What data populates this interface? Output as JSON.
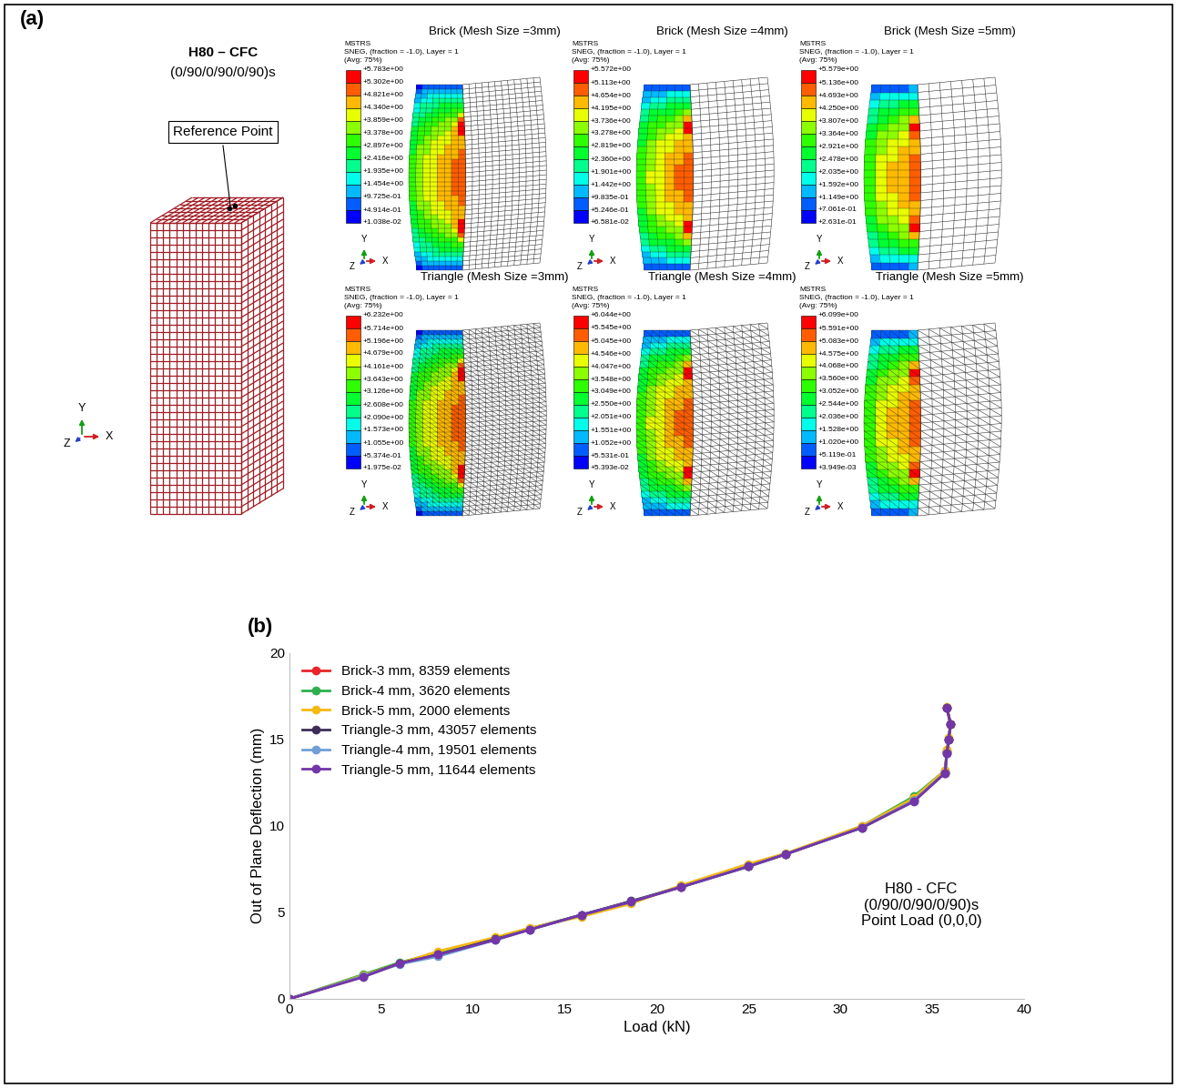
{
  "panel_a": {
    "panel_label": "(a)",
    "model": [
      "H80 – CFC",
      "(0/90/0/90/0/90)s"
    ],
    "reference_point": "Reference Point",
    "axis_letters": {
      "x": "X",
      "y": "Y",
      "z": "Z"
    },
    "header": [
      "MSTRS",
      "SNEG, (fraction = -1.0), Layer = 1",
      "(Avg: 75%)"
    ],
    "contours": [
      {
        "title": "Brick (Mesh Size =3mm)",
        "type": "brick",
        "colorbar_ticks": [
          {
            "value": 5.783,
            "label": "+5.783e+00"
          },
          {
            "value": 5.302,
            "label": "+5.302e+00"
          },
          {
            "value": 4.821,
            "label": "+4.821e+00"
          },
          {
            "value": 4.34,
            "label": "+4.340e+00"
          },
          {
            "value": 3.859,
            "label": "+3.859e+00"
          },
          {
            "value": 3.378,
            "label": "+3.378e+00"
          },
          {
            "value": 2.897,
            "label": "+2.897e+00"
          },
          {
            "value": 2.416,
            "label": "+2.416e+00"
          },
          {
            "value": 1.935,
            "label": "+1.935e+00"
          },
          {
            "value": 1.454,
            "label": "+1.454e+00"
          },
          {
            "value": 0.9725,
            "label": "+9.725e-01"
          },
          {
            "value": 0.4914,
            "label": "+4.914e-01"
          },
          {
            "value": 0.01038,
            "label": "+1.038e-02"
          }
        ]
      },
      {
        "title": "Brick (Mesh Size =4mm)",
        "type": "brick",
        "colorbar_ticks": [
          {
            "value": 5.572,
            "label": "+5.572e+00"
          },
          {
            "value": 5.113,
            "label": "+5.113e+00"
          },
          {
            "value": 4.654,
            "label": "+4.654e+00"
          },
          {
            "value": 4.195,
            "label": "+4.195e+00"
          },
          {
            "value": 3.736,
            "label": "+3.736e+00"
          },
          {
            "value": 3.278,
            "label": "+3.278e+00"
          },
          {
            "value": 2.819,
            "label": "+2.819e+00"
          },
          {
            "value": 2.36,
            "label": "+2.360e+00"
          },
          {
            "value": 1.901,
            "label": "+1.901e+00"
          },
          {
            "value": 1.442,
            "label": "+1.442e+00"
          },
          {
            "value": 0.9835,
            "label": "+9.835e-01"
          },
          {
            "value": 0.5246,
            "label": "+5.246e-01"
          },
          {
            "value": 0.06581,
            "label": "+6.581e-02"
          }
        ]
      },
      {
        "title": "Brick (Mesh Size =5mm)",
        "type": "brick",
        "colorbar_ticks": [
          {
            "value": 5.579,
            "label": "+5.579e+00"
          },
          {
            "value": 5.136,
            "label": "+5.136e+00"
          },
          {
            "value": 4.693,
            "label": "+4.693e+00"
          },
          {
            "value": 4.25,
            "label": "+4.250e+00"
          },
          {
            "value": 3.807,
            "label": "+3.807e+00"
          },
          {
            "value": 3.364,
            "label": "+3.364e+00"
          },
          {
            "value": 2.921,
            "label": "+2.921e+00"
          },
          {
            "value": 2.478,
            "label": "+2.478e+00"
          },
          {
            "value": 2.035,
            "label": "+2.035e+00"
          },
          {
            "value": 1.592,
            "label": "+1.592e+00"
          },
          {
            "value": 1.149,
            "label": "+1.149e+00"
          },
          {
            "value": 0.7061,
            "label": "+7.061e-01"
          },
          {
            "value": 0.2631,
            "label": "+2.631e-01"
          }
        ]
      },
      {
        "title": "Triangle (Mesh Size =3mm)",
        "type": "triangle",
        "colorbar_ticks": [
          {
            "value": 6.232,
            "label": "+6.232e+00"
          },
          {
            "value": 5.714,
            "label": "+5.714e+00"
          },
          {
            "value": 5.196,
            "label": "+5.196e+00"
          },
          {
            "value": 4.679,
            "label": "+4.679e+00"
          },
          {
            "value": 4.161,
            "label": "+4.161e+00"
          },
          {
            "value": 3.643,
            "label": "+3.643e+00"
          },
          {
            "value": 3.126,
            "label": "+3.126e+00"
          },
          {
            "value": 2.608,
            "label": "+2.608e+00"
          },
          {
            "value": 2.09,
            "label": "+2.090e+00"
          },
          {
            "value": 1.573,
            "label": "+1.573e+00"
          },
          {
            "value": 1.055,
            "label": "+1.055e+00"
          },
          {
            "value": 0.5374,
            "label": "+5.374e-01"
          },
          {
            "value": 0.01975,
            "label": "+1.975e-02"
          }
        ]
      },
      {
        "title": "Triangle (Mesh Size =4mm)",
        "type": "triangle",
        "colorbar_ticks": [
          {
            "value": 6.044,
            "label": "+6.044e+00"
          },
          {
            "value": 5.545,
            "label": "+5.545e+00"
          },
          {
            "value": 5.045,
            "label": "+5.045e+00"
          },
          {
            "value": 4.546,
            "label": "+4.546e+00"
          },
          {
            "value": 4.047,
            "label": "+4.047e+00"
          },
          {
            "value": 3.548,
            "label": "+3.548e+00"
          },
          {
            "value": 3.049,
            "label": "+3.049e+00"
          },
          {
            "value": 2.55,
            "label": "+2.550e+00"
          },
          {
            "value": 2.051,
            "label": "+2.051e+00"
          },
          {
            "value": 1.551,
            "label": "+1.551e+00"
          },
          {
            "value": 1.052,
            "label": "+1.052e+00"
          },
          {
            "value": 0.5531,
            "label": "+5.531e-01"
          },
          {
            "value": 0.05393,
            "label": "+5.393e-02"
          }
        ]
      },
      {
        "title": "Triangle (Mesh Size =5mm)",
        "type": "triangle",
        "colorbar_ticks": [
          {
            "value": 6.099,
            "label": "+6.099e+00"
          },
          {
            "value": 5.591,
            "label": "+5.591e+00"
          },
          {
            "value": 5.083,
            "label": "+5.083e+00"
          },
          {
            "value": 4.575,
            "label": "+4.575e+00"
          },
          {
            "value": 4.068,
            "label": "+4.068e+00"
          },
          {
            "value": 3.56,
            "label": "+3.560e+00"
          },
          {
            "value": 3.052,
            "label": "+3.052e+00"
          },
          {
            "value": 2.544,
            "label": "+2.544e+00"
          },
          {
            "value": 2.036,
            "label": "+2.036e+00"
          },
          {
            "value": 1.528,
            "label": "+1.528e+00"
          },
          {
            "value": 1.02,
            "label": "+1.020e+00"
          },
          {
            "value": 0.5119,
            "label": "+5.119e-01"
          },
          {
            "value": 0.003949,
            "label": "+3.949e-03"
          }
        ]
      }
    ]
  },
  "chart_data": {
    "type": "line",
    "panel_label": "(b)",
    "x_label": "Load (kN)",
    "y_label": "Out of Plane Deflection (mm)",
    "xlim": [
      0,
      40
    ],
    "xticks": [
      0,
      5,
      10,
      15,
      20,
      25,
      30,
      35,
      40
    ],
    "ylim": [
      0,
      20
    ],
    "yticks": [
      0,
      5,
      10,
      15,
      20
    ],
    "grid": false,
    "legend": "upper left",
    "marker": "circle",
    "line_style": "solid",
    "annotation": [
      "H80 - CFC",
      "(0/90/0/90/0/90)s",
      "Point Load (0,0,0)"
    ],
    "series": [
      {
        "name": "Brick-3 mm, 8359 elements",
        "color": "#e8262a",
        "x": [
          0,
          4,
          6,
          8.1,
          11.2,
          13.1,
          15.9,
          18.6,
          21.3,
          25,
          27,
          31.2,
          34,
          35.7,
          35.8,
          35.9,
          36,
          35.8
        ],
        "values": [
          0,
          1.3,
          2.05,
          2.6,
          3.45,
          4.05,
          4.85,
          5.6,
          6.45,
          7.7,
          8.35,
          9.95,
          11.5,
          13.1,
          14.3,
          15.0,
          15.9,
          16.8
        ]
      },
      {
        "name": "Brick-4 mm, 3620 elements",
        "color": "#2eb04c",
        "x": [
          0,
          4,
          6,
          8.1,
          11.2,
          13.1,
          15.9,
          18.6,
          21.3,
          25,
          27,
          31.2,
          34,
          35.7,
          35.8,
          35.9,
          36,
          35.8
        ],
        "values": [
          0,
          1.4,
          2.1,
          2.65,
          3.45,
          4.05,
          4.85,
          5.6,
          6.5,
          7.7,
          8.35,
          10.0,
          11.7,
          13.2,
          14.3,
          15.0,
          15.9,
          16.8
        ]
      },
      {
        "name": "Brick-5 mm, 2000 elements",
        "color": "#f6b914",
        "x": [
          0,
          4,
          6,
          8.1,
          11.2,
          13.1,
          15.9,
          18.6,
          21.3,
          25,
          27,
          31.2,
          34,
          35.7,
          35.8,
          35.9,
          36,
          35.8
        ],
        "values": [
          0,
          1.35,
          2.05,
          2.75,
          3.55,
          4.1,
          4.75,
          5.5,
          6.55,
          7.8,
          8.4,
          10.0,
          11.6,
          13.2,
          14.4,
          15.1,
          15.9,
          16.9
        ]
      },
      {
        "name": "Triangle-3 mm, 43057 elements",
        "color": "#3d2e58",
        "x": [
          0,
          4,
          6,
          8.1,
          11.2,
          13.1,
          15.9,
          18.6,
          21.3,
          25,
          27,
          31.2,
          34,
          35.7,
          35.8,
          35.9,
          36,
          35.8
        ],
        "values": [
          0,
          1.3,
          2.05,
          2.55,
          3.45,
          4.0,
          4.85,
          5.65,
          6.45,
          7.65,
          8.35,
          9.9,
          11.45,
          13.05,
          14.2,
          15.0,
          15.9,
          16.8
        ]
      },
      {
        "name": "Triangle-4 mm, 19501 elements",
        "color": "#6f9fd6",
        "x": [
          0,
          4,
          6,
          8.1,
          11.2,
          13.1,
          15.9,
          18.6,
          21.3,
          25,
          27,
          31.2,
          34,
          35.7,
          35.8
        ],
        "values": [
          0,
          1.3,
          2.0,
          2.45,
          3.4,
          4.0,
          4.85,
          5.6,
          6.45,
          7.65,
          8.35,
          9.9,
          11.45,
          13.05,
          14.2
        ]
      },
      {
        "name": "Triangle-5 mm, 11644 elements",
        "color": "#7336a8",
        "x": [
          0,
          4,
          6,
          8.1,
          11.2,
          13.1,
          15.9,
          18.6,
          21.3,
          25,
          27,
          31.2,
          34,
          35.7,
          35.8,
          35.9,
          36,
          35.8
        ],
        "values": [
          0,
          1.25,
          2.05,
          2.55,
          3.4,
          4.0,
          4.85,
          5.6,
          6.45,
          7.65,
          8.35,
          9.9,
          11.4,
          13.05,
          14.2,
          15.0,
          15.9,
          16.8
        ]
      }
    ]
  }
}
